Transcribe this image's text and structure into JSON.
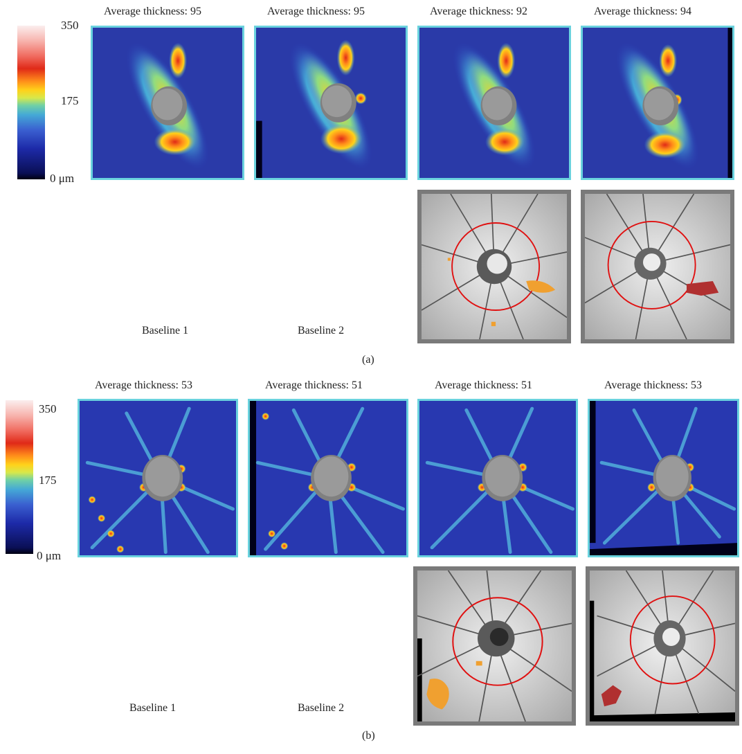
{
  "figure": {
    "colorbar": {
      "max": "350",
      "mid": "175",
      "min": "0 μm"
    },
    "panels": [
      {
        "label": "(a)",
        "titles": [
          "Average thickness: 95",
          "Average thickness: 95",
          "Average thickness: 92",
          "Average thickness: 94"
        ],
        "baselines": [
          "Baseline 1",
          "Baseline 2"
        ]
      },
      {
        "label": "(b)",
        "titles": [
          "Average thickness: 53",
          "Average thickness: 51",
          "Average thickness: 51",
          "Average thickness: 53"
        ],
        "baselines": [
          "Baseline 1",
          "Baseline 2"
        ]
      }
    ]
  },
  "colors": {
    "map_border": "#6ad2de",
    "fundus_border": "#7a7a7a",
    "circle": "#e01010",
    "change_orange": "#f0a030",
    "change_red": "#b03030",
    "disc_gray": "#9a9a9a"
  }
}
